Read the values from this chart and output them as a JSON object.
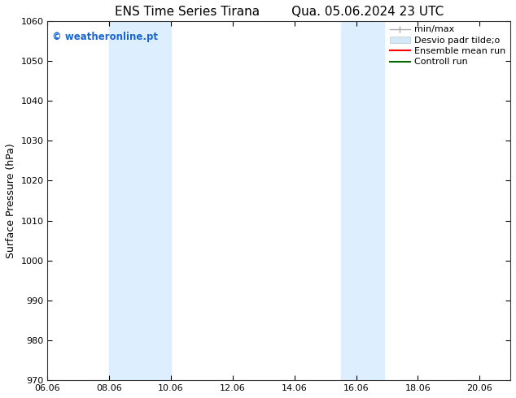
{
  "title_left": "ENS Time Series Tirana",
  "title_right": "Qua. 05.06.2024 23 UTC",
  "ylabel": "Surface Pressure (hPa)",
  "ylim": [
    970,
    1060
  ],
  "yticks": [
    970,
    980,
    990,
    1000,
    1010,
    1020,
    1030,
    1040,
    1050,
    1060
  ],
  "xlim_start": 6.06,
  "xlim_end": 21.06,
  "xtick_positions": [
    6.06,
    8.06,
    10.06,
    12.06,
    14.06,
    16.06,
    18.06,
    20.06
  ],
  "xticklabels": [
    "06.06",
    "08.06",
    "10.06",
    "12.06",
    "14.06",
    "16.06",
    "18.06",
    "20.06"
  ],
  "shaded_regions": [
    {
      "x_start": 8.06,
      "x_end": 10.06
    },
    {
      "x_start": 15.56,
      "x_end": 16.96
    }
  ],
  "shaded_color": "#ddeeff",
  "watermark_text": "© weatheronline.pt",
  "watermark_color": "#1a66cc",
  "legend_labels": [
    "min/max",
    "Desvio padr tilde;o",
    "Ensemble mean run",
    "Controll run"
  ],
  "legend_colors": [
    "#999999",
    "#cccccc",
    "#ff0000",
    "#008000"
  ],
  "bg_color": "#ffffff",
  "spine_color": "#333333",
  "title_fontsize": 11,
  "axis_label_fontsize": 9,
  "tick_fontsize": 8,
  "legend_fontsize": 8
}
